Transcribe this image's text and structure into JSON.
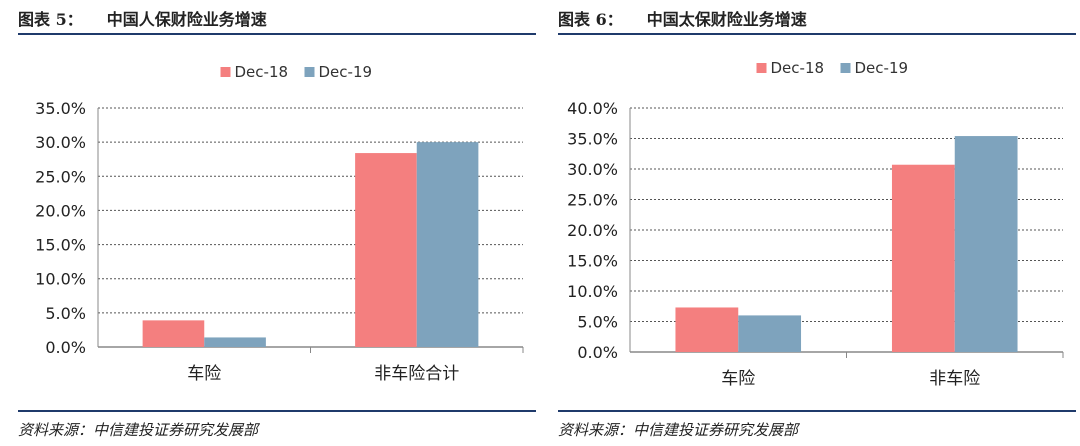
{
  "figures": [
    {
      "fig_label": "图表 5：",
      "title": "中国人保财险业务增速",
      "source": "资料来源：中信建投证券研究发展部"
    },
    {
      "fig_label": "图表 6：",
      "title": "中国太保财险业务增速",
      "source": "资料来源：中信建投证券研究发展部"
    }
  ],
  "colors": {
    "dec18": "#f47f7f",
    "dec19": "#7ea3bd",
    "axis": "#888888",
    "grid": "#555555"
  },
  "chart_data": [
    {
      "type": "bar",
      "categories": [
        "车险",
        "非车险合计"
      ],
      "series": [
        {
          "name": "Dec-18",
          "values": [
            3.9,
            28.4
          ]
        },
        {
          "name": "Dec-19",
          "values": [
            1.4,
            30.0
          ]
        }
      ],
      "ylim": [
        0,
        35
      ],
      "yticks": [
        "0.0%",
        "5.0%",
        "10.0%",
        "15.0%",
        "20.0%",
        "25.0%",
        "30.0%",
        "35.0%"
      ],
      "legend": "top-center",
      "grid": true
    },
    {
      "type": "bar",
      "categories": [
        "车险",
        "非车险"
      ],
      "series": [
        {
          "name": "Dec-18",
          "values": [
            7.3,
            30.7
          ]
        },
        {
          "name": "Dec-19",
          "values": [
            6.0,
            35.4
          ]
        }
      ],
      "ylim": [
        0,
        40
      ],
      "yticks": [
        "0.0%",
        "5.0%",
        "10.0%",
        "15.0%",
        "20.0%",
        "25.0%",
        "30.0%",
        "35.0%",
        "40.0%"
      ],
      "legend": "top-center",
      "grid": true
    }
  ]
}
